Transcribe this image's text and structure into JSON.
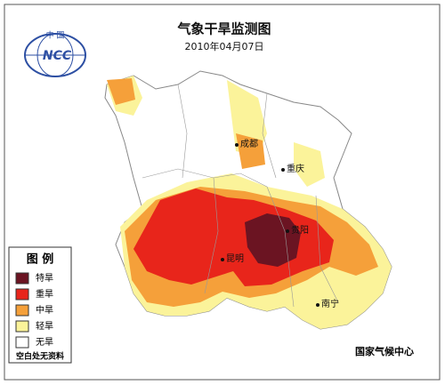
{
  "header": {
    "title": "气象干旱监测图",
    "date": "2010年04月07日"
  },
  "logo": {
    "top": "中 国",
    "mark": "NCC"
  },
  "cities": [
    {
      "label": "成都"
    },
    {
      "label": "重庆"
    },
    {
      "label": "贵阳"
    },
    {
      "label": "昆明"
    },
    {
      "label": "南宁"
    }
  ],
  "legend": {
    "title": "图 例",
    "items": [
      {
        "label": "特旱",
        "color": "#6b1422"
      },
      {
        "label": "重旱",
        "color": "#e8251b"
      },
      {
        "label": "中旱",
        "color": "#f5a03a"
      },
      {
        "label": "轻旱",
        "color": "#fbf39a"
      },
      {
        "label": "无旱",
        "color": "#ffffff"
      }
    ],
    "note": "空白处无资料"
  },
  "footer": {
    "source": "国家气候中心"
  }
}
